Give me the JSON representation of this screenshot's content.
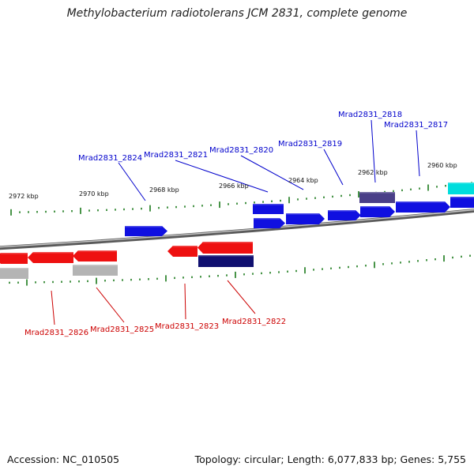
{
  "title": "Methylobacterium radiotolerans JCM 2831, complete genome",
  "footer": {
    "accession": "Accession: NC_010505",
    "stats": "Topology: circular; Length: 6,077,833 bp; Genes: 5,755"
  },
  "scale_labels": [
    "2972 kbp",
    "2970 kbp",
    "2968 kbp",
    "2966 kbp",
    "2964 kbp",
    "2962 kbp",
    "2960 kbp"
  ],
  "gene_labels": {
    "forward": [
      "Mrad2831_2824",
      "Mrad2831_2821",
      "Mrad2831_2820",
      "Mrad2831_2819",
      "Mrad2831_2818",
      "Mrad2831_2817"
    ],
    "reverse": [
      "Mrad2831_2826",
      "Mrad2831_2825",
      "Mrad2831_2823",
      "Mrad2831_2822"
    ]
  },
  "colors": {
    "forward_gene": "#1010e0",
    "reverse_gene": "#ee1010",
    "forward_label": "#0000cc",
    "reverse_label": "#cc0000",
    "rna_gene": "#00dddd",
    "dark_forward": "#4a3f88",
    "dark_reverse": "#101070",
    "pseudo": "#b4b4b4",
    "tick": "#1a7a1a",
    "backbone": "#888888"
  }
}
